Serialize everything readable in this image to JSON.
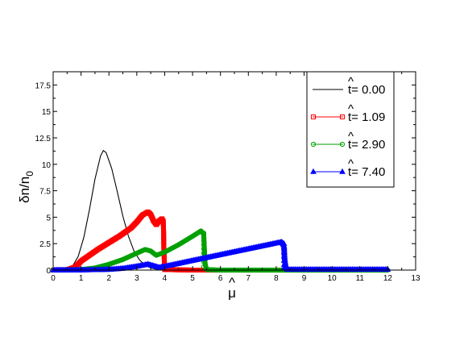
{
  "chart_data": {
    "type": "line",
    "xlabel": "μ",
    "xlabel_hat": "^",
    "ylabel_main": "δn/n",
    "ylabel_sub": "0",
    "xlim": [
      0,
      13
    ],
    "ylim": [
      0,
      18.75
    ],
    "x_ticks": [
      0,
      1,
      2,
      3,
      4,
      5,
      6,
      7,
      8,
      9,
      10,
      11,
      12,
      13
    ],
    "y_ticks": [
      0,
      2.5,
      5,
      7.5,
      10,
      12.5,
      15,
      17.5
    ],
    "x_tick_labels": [
      "0",
      "1",
      "2",
      "3",
      "4",
      "5",
      "6",
      "7",
      "8",
      "9",
      "10",
      "11",
      "12",
      "13"
    ],
    "y_tick_labels": [
      "0",
      "2.5",
      "5",
      "7.5",
      "10",
      "12.5",
      "15",
      "17.5"
    ],
    "grid": false,
    "legend_position": "top-right",
    "series": [
      {
        "name": "t= 0.00",
        "hat": "^",
        "color": "#000000",
        "marker": "none",
        "x": [
          0,
          0.3,
          0.5,
          0.7,
          0.9,
          1.1,
          1.3,
          1.5,
          1.7,
          1.8,
          1.9,
          2.1,
          2.3,
          2.5,
          2.7,
          2.9,
          3.1,
          3.3,
          3.5,
          3.7,
          4.0,
          4.5,
          5.0,
          6.0,
          12.0
        ],
        "y": [
          0,
          0.02,
          0.1,
          0.4,
          1.3,
          3.1,
          5.7,
          8.6,
          10.8,
          11.3,
          11.1,
          9.6,
          7.4,
          5.1,
          3.2,
          1.8,
          0.95,
          0.45,
          0.2,
          0.08,
          0.02,
          0.0,
          0.0,
          0.0,
          0.0
        ]
      },
      {
        "name": "t= 1.09",
        "hat": "^",
        "color": "#ff0000",
        "marker": "square",
        "x": [
          0,
          0.5,
          0.8,
          1.0,
          1.3,
          1.6,
          2.0,
          2.4,
          2.8,
          3.0,
          3.2,
          3.4,
          3.5,
          3.6,
          3.7,
          3.8,
          3.9,
          3.95,
          3.96,
          3.97,
          4.0,
          5.0,
          6.0
        ],
        "y": [
          0,
          0.02,
          0.3,
          0.85,
          1.4,
          1.95,
          2.6,
          3.25,
          4.0,
          4.55,
          5.2,
          5.5,
          5.25,
          4.65,
          4.3,
          4.65,
          4.85,
          4.6,
          3.7,
          2.0,
          0.05,
          0.0,
          0.0
        ]
      },
      {
        "name": "t= 2.90",
        "hat": "^",
        "color": "#00a000",
        "marker": "circle",
        "x": [
          0,
          0.5,
          1.0,
          1.5,
          2.0,
          2.5,
          3.0,
          3.3,
          3.5,
          3.7,
          4.0,
          4.5,
          5.0,
          5.3,
          5.4,
          5.42,
          5.45,
          5.5,
          6.0,
          8.0,
          10.0,
          12.0
        ],
        "y": [
          0,
          0.0,
          0.05,
          0.2,
          0.55,
          1.0,
          1.6,
          1.95,
          1.8,
          1.4,
          1.7,
          2.4,
          3.2,
          3.7,
          3.4,
          2.2,
          0.6,
          0.05,
          0.0,
          0.0,
          0.0,
          0.0
        ],
        "marker_x": [
          5.4,
          5.4,
          5.4,
          5.4,
          5.4,
          5.4,
          5.4,
          5.4,
          5.4
        ],
        "marker_y": [
          3.5,
          3.2,
          2.8,
          2.4,
          2.0,
          1.6,
          1.2,
          0.8,
          0.3
        ]
      },
      {
        "name": "t= 7.40",
        "hat": "^",
        "color": "#0000ff",
        "marker": "triangle",
        "x": [
          0,
          1.0,
          1.5,
          2.0,
          2.5,
          3.0,
          3.4,
          3.6,
          3.8,
          4.2,
          5.0,
          6.0,
          7.0,
          8.0,
          8.2,
          8.28,
          8.3,
          8.35,
          8.4,
          9.0,
          10.0,
          12.0
        ],
        "y": [
          0,
          0.0,
          0.02,
          0.05,
          0.15,
          0.35,
          0.55,
          0.4,
          0.25,
          0.45,
          0.9,
          1.45,
          2.0,
          2.55,
          2.65,
          2.3,
          1.2,
          0.2,
          0.05,
          0.05,
          0.05,
          0.05
        ],
        "marker_x": [
          8.28,
          8.28,
          8.28,
          8.28,
          8.28,
          8.28,
          8.28
        ],
        "marker_y": [
          2.5,
          2.1,
          1.7,
          1.3,
          0.9,
          0.5,
          0.2
        ]
      }
    ]
  }
}
